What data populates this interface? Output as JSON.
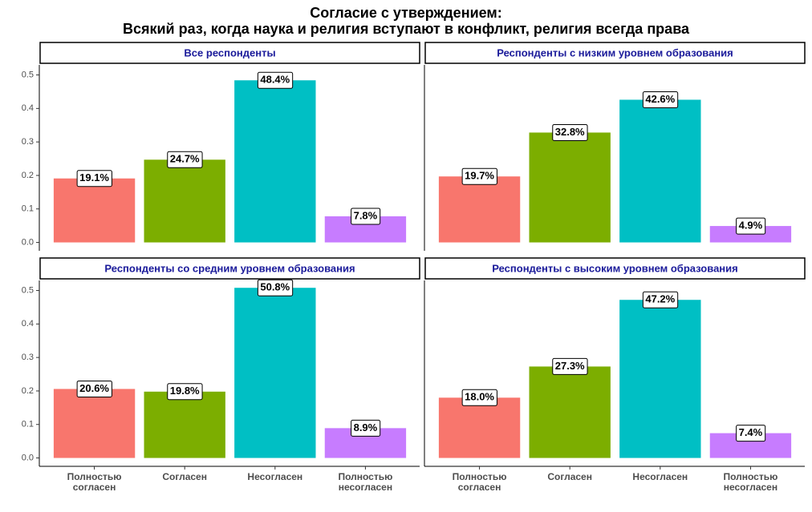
{
  "title": "Согласие с утверждением:",
  "subtitle": "Всякий раз, когда наука и религия вступают в конфликт, религия всегда права",
  "chart_data": [
    {
      "type": "bar",
      "title": "Все респонденты",
      "categories": [
        null,
        null,
        null,
        null
      ],
      "values": [
        0.191,
        0.247,
        0.484,
        0.078
      ],
      "value_labels": [
        "19.1%",
        "24.7%",
        "48.4%",
        "7.8%"
      ],
      "colors": [
        "#f8766d",
        "#7cae00",
        "#00bfc4",
        "#c77cff"
      ],
      "ylim": [
        -0.025,
        0.53
      ],
      "yticks": [
        {
          "value": 0,
          "label": "0.0"
        },
        0.1,
        0.2,
        0.3,
        0.4,
        0.5
      ]
    },
    {
      "type": "bar",
      "title": "Респонденты с низким уровнем образования",
      "categories": [
        null,
        null,
        null,
        null
      ],
      "values": [
        0.197,
        0.328,
        0.426,
        0.049
      ],
      "value_labels": [
        "19.7%",
        "32.8%",
        "42.6%",
        "4.9%"
      ],
      "colors": [
        "#f8766d",
        "#7cae00",
        "#00bfc4",
        "#c77cff"
      ],
      "ylim": [
        -0.025,
        0.53
      ]
    },
    {
      "type": "bar",
      "title": "Респонденты со средним уровнем образования",
      "categories": [
        "Полностью согласен",
        "Согласен",
        "Несогласен",
        "Полностью несогласен"
      ],
      "values": [
        0.206,
        0.198,
        0.508,
        0.089
      ],
      "value_labels": [
        "20.6%",
        "19.8%",
        "50.8%",
        "8.9%"
      ],
      "colors": [
        "#f8766d",
        "#7cae00",
        "#00bfc4",
        "#c77cff"
      ],
      "ylim": [
        -0.025,
        0.53
      ],
      "yticks": [
        {
          "value": 0,
          "label": "0.0"
        },
        0.1,
        0.2,
        0.3,
        0.4,
        0.5
      ]
    },
    {
      "type": "bar",
      "title": "Респонденты с высоким уровнем образования",
      "categories": [
        "Полностью согласен",
        "Согласен",
        "Несогласен",
        "Полностью несогласен"
      ],
      "values": [
        0.18,
        0.273,
        0.472,
        0.074
      ],
      "value_labels": [
        "18.0%",
        "27.3%",
        "47.2%",
        "7.4%"
      ],
      "colors": [
        "#f8766d",
        "#7cae00",
        "#00bfc4",
        "#c77cff"
      ],
      "ylim": [
        -0.025,
        0.53
      ]
    }
  ]
}
